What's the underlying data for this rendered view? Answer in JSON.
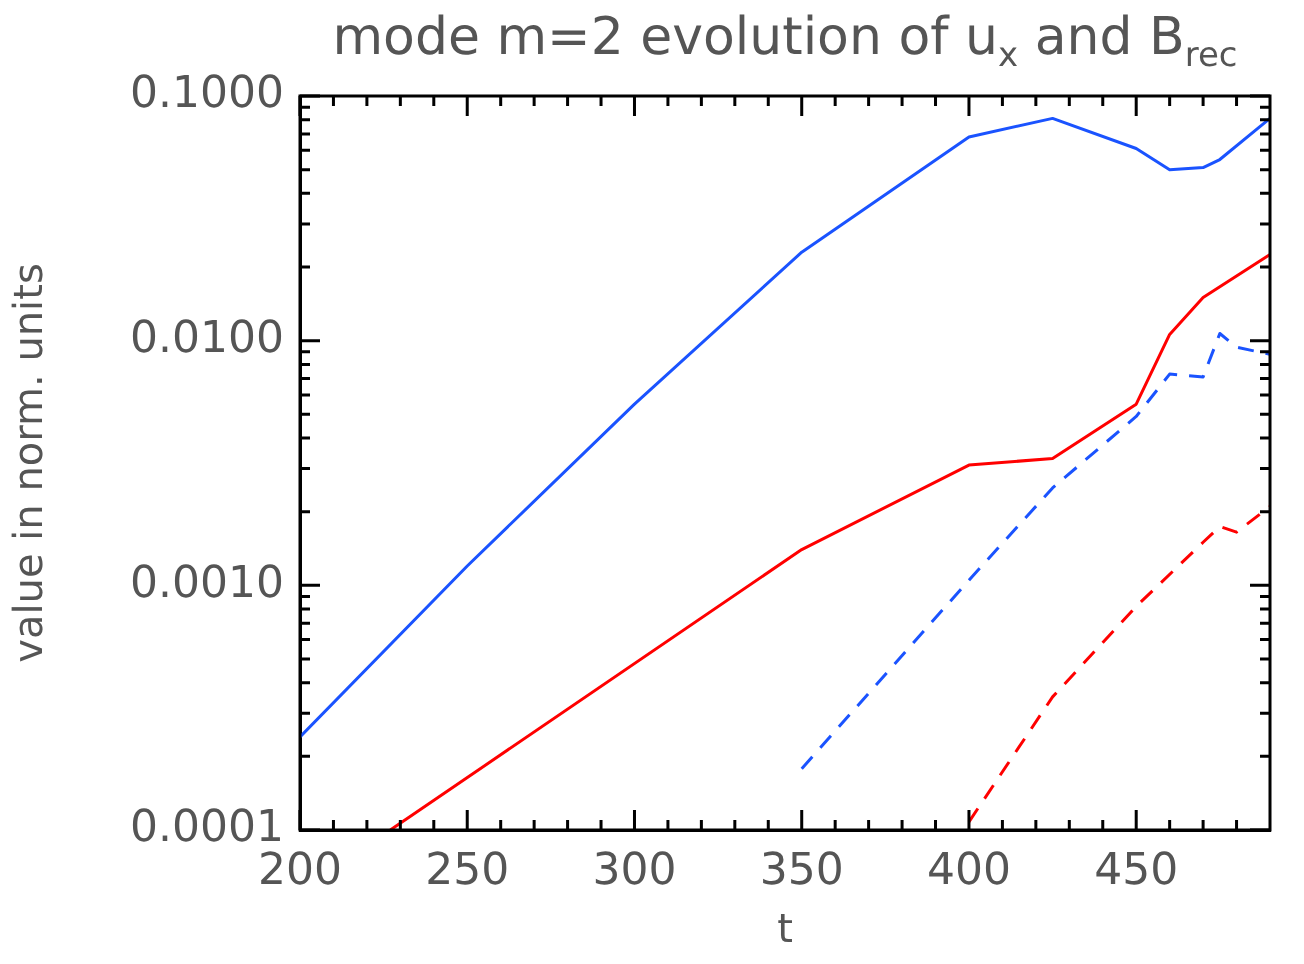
{
  "chart_data": {
    "type": "line",
    "title": "mode m=2 evolution of u$_{x}$ and B$_{rec}$",
    "xlabel": "t",
    "ylabel": "value in norm. units",
    "log": "y",
    "grid": false,
    "legend": false,
    "marker": "none",
    "xlim": [
      200,
      490
    ],
    "ylim": [
      0.0001,
      0.1
    ],
    "xticks": [
      200,
      {
        "value": 210,
        "label": null
      },
      {
        "value": 220,
        "label": null
      },
      {
        "value": 230,
        "label": null
      },
      {
        "value": 240,
        "label": null
      },
      250,
      {
        "value": 260,
        "label": null
      },
      {
        "value": 270,
        "label": null
      },
      {
        "value": 280,
        "label": null
      },
      {
        "value": 290,
        "label": null
      },
      300,
      {
        "value": 310,
        "label": null
      },
      {
        "value": 320,
        "label": null
      },
      {
        "value": 330,
        "label": null
      },
      {
        "value": 340,
        "label": null
      },
      350,
      {
        "value": 360,
        "label": null
      },
      {
        "value": 370,
        "label": null
      },
      {
        "value": 380,
        "label": null
      },
      {
        "value": 390,
        "label": null
      },
      400,
      {
        "value": 410,
        "label": null
      },
      {
        "value": 420,
        "label": null
      },
      {
        "value": 430,
        "label": null
      },
      {
        "value": 440,
        "label": null
      },
      450,
      {
        "value": 460,
        "label": null
      },
      {
        "value": 470,
        "label": null
      },
      {
        "value": 480,
        "label": null
      }
    ],
    "yticks": [
      {
        "value": 0.0001,
        "label": "0.0001"
      },
      {
        "value": 0.0002,
        "label": null
      },
      {
        "value": 0.0003,
        "label": null
      },
      {
        "value": 0.0004,
        "label": null
      },
      {
        "value": 0.0005,
        "label": null
      },
      {
        "value": 0.0006,
        "label": null
      },
      {
        "value": 0.0007,
        "label": null
      },
      {
        "value": 0.0008,
        "label": null
      },
      {
        "value": 0.0009,
        "label": null
      },
      {
        "value": 0.001,
        "label": "0.0010"
      },
      {
        "value": 0.002,
        "label": null
      },
      {
        "value": 0.003,
        "label": null
      },
      {
        "value": 0.004,
        "label": null
      },
      {
        "value": 0.005,
        "label": null
      },
      {
        "value": 0.006,
        "label": null
      },
      {
        "value": 0.007,
        "label": null
      },
      {
        "value": 0.008,
        "label": null
      },
      {
        "value": 0.009,
        "label": null
      },
      {
        "value": 0.01,
        "label": "0.0100"
      },
      {
        "value": 0.02,
        "label": null
      },
      {
        "value": 0.03,
        "label": null
      },
      {
        "value": 0.04,
        "label": null
      },
      {
        "value": 0.05,
        "label": null
      },
      {
        "value": 0.06,
        "label": null
      },
      {
        "value": 0.07,
        "label": null
      },
      {
        "value": 0.08,
        "label": null
      },
      {
        "value": 0.09,
        "label": null
      },
      {
        "value": 0.1,
        "label": "0.1000"
      }
    ],
    "series": [
      {
        "color": "#1a53ff",
        "line_style": "solid",
        "x": [
          200,
          250,
          300,
          350,
          400,
          425,
          450,
          460,
          470,
          475,
          490
        ],
        "values": [
          0.00024,
          0.0012,
          0.0055,
          0.023,
          0.068,
          0.081,
          0.061,
          0.05,
          0.051,
          0.055,
          0.081
        ]
      },
      {
        "color": "#ff0000",
        "line_style": "solid",
        "x": [
          227,
          350,
          400,
          425,
          450,
          460,
          470,
          490
        ],
        "values": [
          0.0001,
          0.0014,
          0.0031,
          0.0033,
          0.0055,
          0.0106,
          0.015,
          0.0225
        ]
      },
      {
        "color": "#1a53ff",
        "line_style": "dashed",
        "x": [
          350,
          400,
          425,
          450,
          460,
          470,
          475,
          480,
          490
        ],
        "values": [
          0.000178,
          0.00105,
          0.0025,
          0.0049,
          0.0073,
          0.0071,
          0.0107,
          0.0094,
          0.0088
        ]
      },
      {
        "color": "#ff0000",
        "line_style": "dashed",
        "x": [
          400,
          425,
          450,
          470,
          475,
          480,
          490
        ],
        "values": [
          0.000108,
          0.00035,
          0.00082,
          0.0015,
          0.00174,
          0.00165,
          0.0021
        ]
      }
    ]
  }
}
